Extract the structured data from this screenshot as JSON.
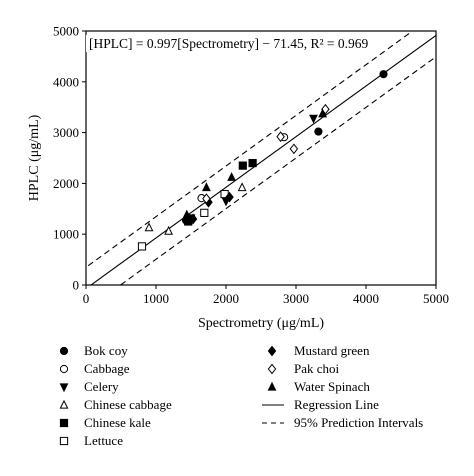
{
  "chart_data": {
    "type": "scatter",
    "title": "",
    "xlabel": "Spectrometry (μg/mL)",
    "ylabel": "HPLC (μg/mL)",
    "xlim": [
      0,
      5000
    ],
    "ylim": [
      0,
      5000
    ],
    "xticks": [
      "0",
      "1000",
      "2000",
      "3000",
      "4000",
      "5000"
    ],
    "yticks": [
      "0",
      "1000",
      "2000",
      "3000",
      "4000",
      "5000"
    ],
    "grid": false,
    "legend_position": "bottom",
    "annotation": "[HPLC] = 0.997[Spectrometry] − 71.45, R² = 0.969",
    "regression": {
      "slope": 0.997,
      "intercept": -71.45
    },
    "prediction_interval_offset": 420,
    "series": [
      {
        "name": "Bok coy",
        "marker": "filled-circle",
        "points": [
          [
            4250,
            4150
          ],
          [
            3320,
            3020
          ],
          [
            1430,
            1270
          ],
          [
            1500,
            1290
          ]
        ]
      },
      {
        "name": "Cabbage",
        "marker": "open-circle",
        "points": [
          [
            2830,
            2910
          ],
          [
            1650,
            1710
          ]
        ]
      },
      {
        "name": "Celery",
        "marker": "filled-triangle-down",
        "points": [
          [
            3250,
            3280
          ],
          [
            2000,
            1650
          ],
          [
            1500,
            1320
          ]
        ]
      },
      {
        "name": "Chinese cabbage",
        "marker": "open-triangle",
        "points": [
          [
            900,
            1130
          ],
          [
            1180,
            1060
          ],
          [
            2230,
            1920
          ]
        ]
      },
      {
        "name": "Chinese kale",
        "marker": "filled-square",
        "points": [
          [
            2240,
            2350
          ],
          [
            2380,
            2400
          ],
          [
            1460,
            1250
          ]
        ]
      },
      {
        "name": "Lettuce",
        "marker": "open-square",
        "points": [
          [
            800,
            760
          ],
          [
            1690,
            1420
          ],
          [
            1980,
            1790
          ]
        ]
      },
      {
        "name": "Mustard green",
        "marker": "filled-diamond",
        "points": [
          [
            1530,
            1300
          ],
          [
            1750,
            1630
          ],
          [
            2050,
            1730
          ]
        ]
      },
      {
        "name": "Pak choi",
        "marker": "open-diamond",
        "points": [
          [
            3420,
            3460
          ],
          [
            2970,
            2680
          ],
          [
            1720,
            1700
          ],
          [
            2780,
            2920
          ]
        ]
      },
      {
        "name": "Water Spinach",
        "marker": "filled-triangle-up",
        "points": [
          [
            3380,
            3370
          ],
          [
            1720,
            1920
          ],
          [
            2080,
            2120
          ],
          [
            1440,
            1380
          ]
        ]
      }
    ],
    "legend": {
      "left": [
        "Bok coy",
        "Cabbage",
        "Celery",
        "Chinese cabbage",
        "Chinese kale",
        "Lettuce"
      ],
      "right": [
        "Mustard green",
        "Pak choi",
        "Water Spinach"
      ],
      "lines": [
        "Regression Line",
        "95% Prediction Intervals"
      ]
    }
  }
}
